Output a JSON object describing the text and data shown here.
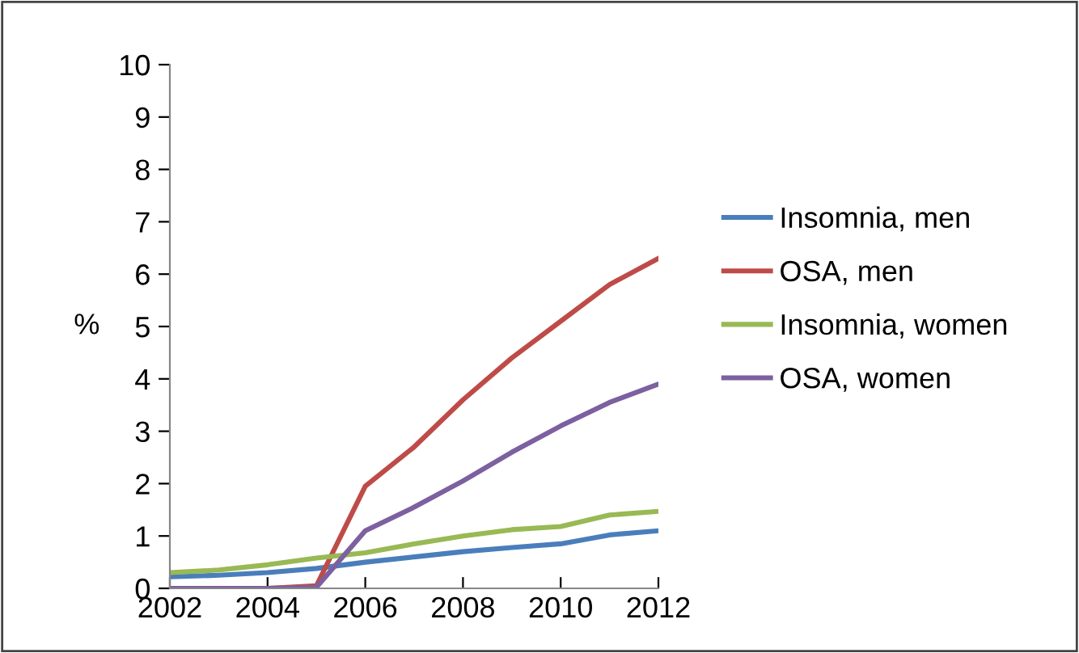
{
  "chart_data": {
    "type": "line",
    "ylabel": "%",
    "x": [
      2002,
      2003,
      2004,
      2005,
      2006,
      2007,
      2008,
      2009,
      2010,
      2011,
      2012
    ],
    "series": [
      {
        "name": "Insomnia, men",
        "color": "#4a7ebb",
        "values": [
          0.22,
          0.25,
          0.3,
          0.38,
          0.5,
          0.6,
          0.7,
          0.78,
          0.85,
          1.02,
          1.1
        ]
      },
      {
        "name": "OSA, men",
        "color": "#be4b48",
        "values": [
          0,
          0,
          0,
          0.05,
          1.95,
          2.7,
          3.6,
          4.4,
          5.1,
          5.8,
          6.3
        ]
      },
      {
        "name": "Insomnia, women",
        "color": "#98b954",
        "values": [
          0.3,
          0.35,
          0.45,
          0.58,
          0.68,
          0.85,
          1.0,
          1.12,
          1.18,
          1.4,
          1.47
        ]
      },
      {
        "name": "OSA, women",
        "color": "#7d60a0",
        "values": [
          0,
          0,
          0,
          0.02,
          1.1,
          1.55,
          2.05,
          2.6,
          3.1,
          3.55,
          3.9
        ]
      }
    ],
    "xlim": [
      2002,
      2012
    ],
    "xticks": [
      2002,
      2004,
      2006,
      2008,
      2010,
      2012
    ],
    "ylim": [
      0,
      10
    ],
    "yticks": [
      0,
      1,
      2,
      3,
      4,
      5,
      6,
      7,
      8,
      9,
      10
    ],
    "grid": false,
    "legend": "right",
    "marker": "none",
    "line_style": "solid"
  }
}
